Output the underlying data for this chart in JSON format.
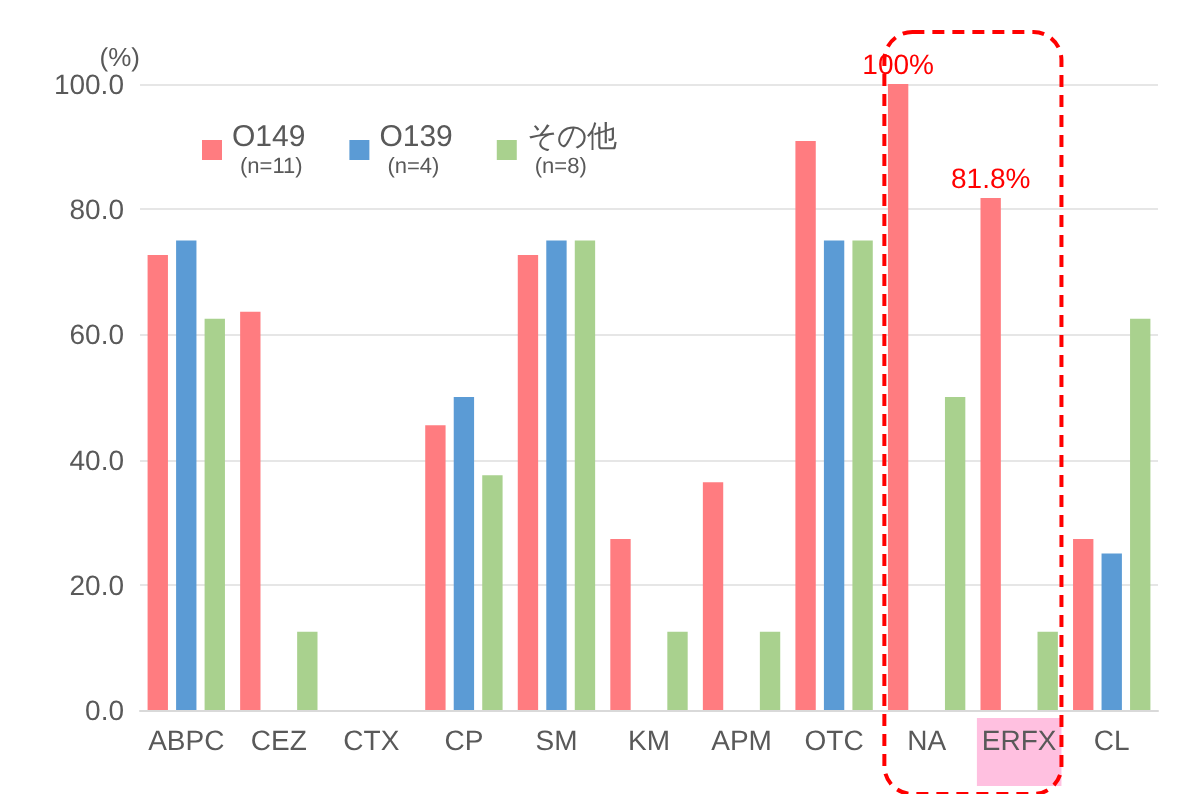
{
  "chart_data": {
    "type": "bar",
    "ylabel": "(%)",
    "categories": [
      "ABPC",
      "CEZ",
      "CTX",
      "CP",
      "SM",
      "KM",
      "APM",
      "OTC",
      "NA",
      "ERFX",
      "CL"
    ],
    "series": [
      {
        "name": "O149\n(n=11)",
        "color": "#ff7c80",
        "values": [
          72.7,
          63.6,
          0,
          45.5,
          72.7,
          27.3,
          36.4,
          90.9,
          100,
          81.8,
          27.3
        ],
        "value_labels": [
          null,
          null,
          null,
          null,
          null,
          null,
          null,
          null,
          "100%",
          "81.8%",
          null
        ]
      },
      {
        "name": "O139\n(n=4)",
        "color": "#5b9bd5",
        "values": [
          75,
          0,
          0,
          50,
          75,
          0,
          0,
          75,
          0,
          0,
          25
        ]
      },
      {
        "name": "その他\n(n=8)",
        "color": "#a9d18e",
        "values": [
          62.5,
          12.5,
          0,
          37.5,
          75,
          12.5,
          12.5,
          75,
          50,
          12.5,
          62.5
        ]
      }
    ],
    "ylim": [
      0,
      100
    ],
    "yticks": [
      {
        "value": 0,
        "label": "0.0"
      },
      {
        "value": 20,
        "label": "20.0"
      },
      {
        "value": 40,
        "label": "40.0"
      },
      {
        "value": 60,
        "label": "60.0"
      },
      {
        "value": 80,
        "label": "80.0"
      },
      {
        "value": 100,
        "label": "100.0"
      }
    ],
    "grid": "y",
    "legend": "top left"
  }
}
